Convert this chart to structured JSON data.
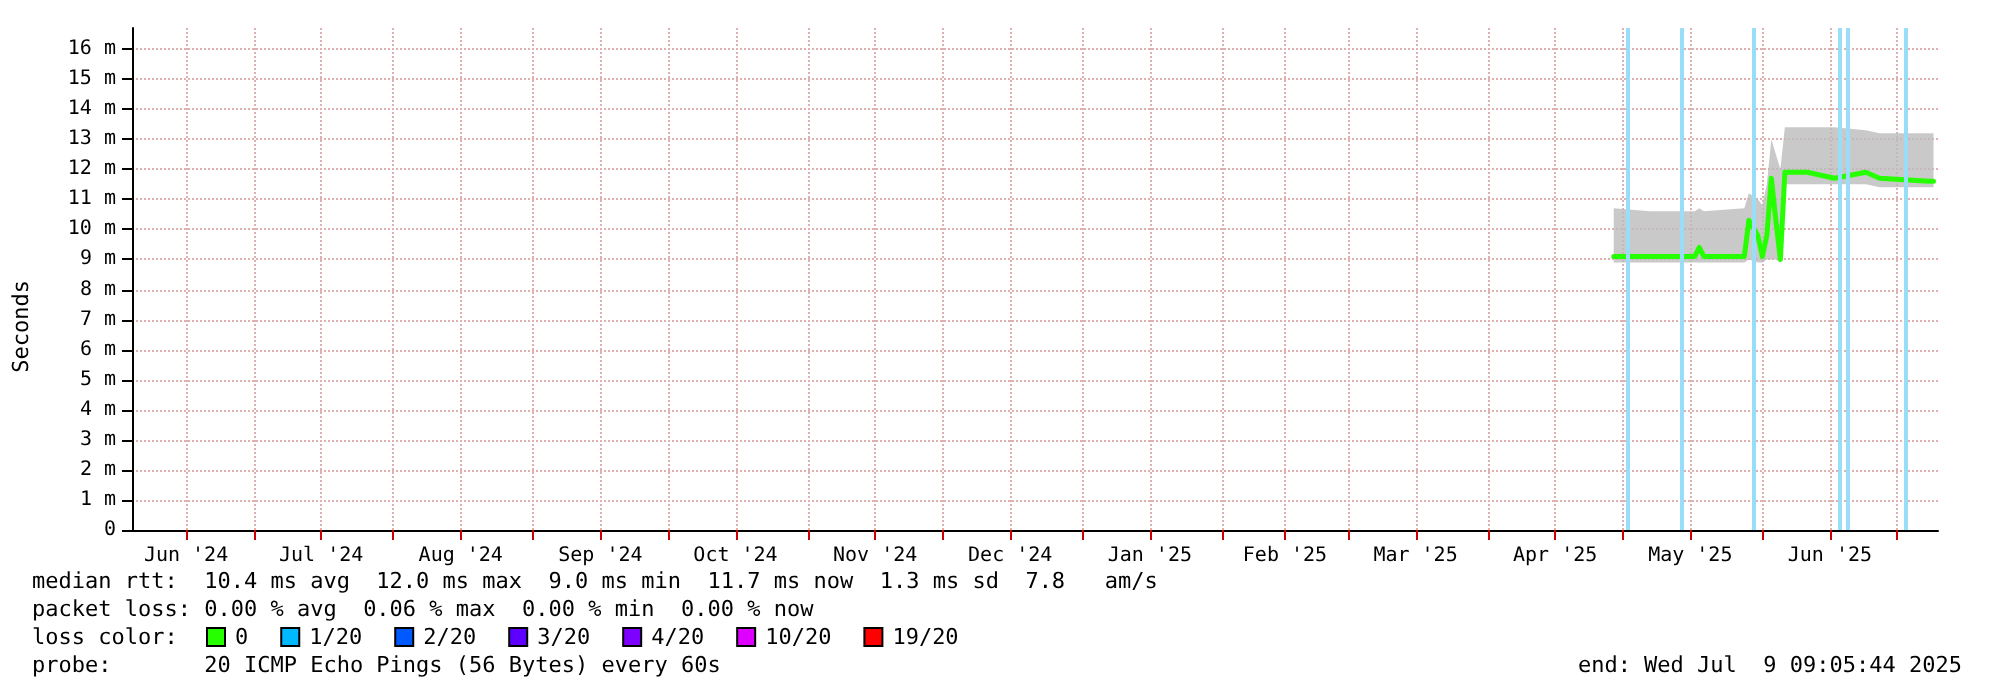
{
  "chart_data": {
    "type": "line",
    "ylabel": "Seconds",
    "legend_title": "loss color:",
    "legend": "bottom left",
    "grid": true,
    "marker": "none",
    "line_style": "solid",
    "annotations": [
      "median rtt:  10.4 ms avg  12.0 ms max  9.0 ms min  11.7 ms now  1.3 ms sd  7.8   am/s",
      "packet loss: 0.00 % avg  0.06 % max  0.00 % min  0.00 % now",
      "probe:       20 ICMP Echo Pings (56 Bytes) every 60s",
      "end: Wed Jul  9 09:05:44 2025"
    ],
    "xlim": [
      "2024-06-04",
      "2025-07-10"
    ],
    "xticks": [
      {
        "value": "2024-06-16",
        "label": "Jun '24"
      },
      {
        "value": "2024-07-01",
        "label": null
      },
      {
        "value": "2024-07-16",
        "label": "Jul '24"
      },
      {
        "value": "2024-08-01",
        "label": null
      },
      {
        "value": "2024-08-16",
        "label": "Aug '24"
      },
      {
        "value": "2024-09-01",
        "label": null
      },
      {
        "value": "2024-09-16",
        "label": "Sep '24"
      },
      {
        "value": "2024-10-01",
        "label": null
      },
      {
        "value": "2024-10-16",
        "label": "Oct '24"
      },
      {
        "value": "2024-11-01",
        "label": null
      },
      {
        "value": "2024-11-16",
        "label": "Nov '24"
      },
      {
        "value": "2024-12-01",
        "label": null
      },
      {
        "value": "2024-12-16",
        "label": "Dec '24"
      },
      {
        "value": "2025-01-01",
        "label": null
      },
      {
        "value": "2025-01-16",
        "label": "Jan '25"
      },
      {
        "value": "2025-02-01",
        "label": null
      },
      {
        "value": "2025-02-15",
        "label": "Feb '25"
      },
      {
        "value": "2025-03-01",
        "label": null
      },
      {
        "value": "2025-03-16",
        "label": "Mar '25"
      },
      {
        "value": "2025-04-01",
        "label": null
      },
      {
        "value": "2025-04-16",
        "label": "Apr '25"
      },
      {
        "value": "2025-05-01",
        "label": null
      },
      {
        "value": "2025-05-16",
        "label": "May '25"
      },
      {
        "value": "2025-06-01",
        "label": null
      },
      {
        "value": "2025-06-16",
        "label": "Jun '25"
      },
      {
        "value": "2025-07-01",
        "label": null
      }
    ],
    "ylim": [
      0,
      16.7
    ],
    "yticks": [
      0,
      {
        "value": 1,
        "label": "1 m"
      },
      {
        "value": 2,
        "label": "2 m"
      },
      {
        "value": 3,
        "label": "3 m"
      },
      {
        "value": 4,
        "label": "4 m"
      },
      {
        "value": 5,
        "label": "5 m"
      },
      {
        "value": 6,
        "label": "6 m"
      },
      {
        "value": 7,
        "label": "7 m"
      },
      {
        "value": 8,
        "label": "8 m"
      },
      {
        "value": 9,
        "label": "9 m"
      },
      {
        "value": 10,
        "label": "10 m"
      },
      {
        "value": 11,
        "label": "11 m"
      },
      {
        "value": 12,
        "label": "12 m"
      },
      {
        "value": 13,
        "label": "13 m"
      },
      {
        "value": 14,
        "label": "14 m"
      },
      {
        "value": 15,
        "label": "15 m"
      },
      {
        "value": 16,
        "label": "16 m"
      }
    ],
    "ref_lines": [
      {
        "axis": "x",
        "value": "2025-05-02",
        "color": "#99ddf8"
      },
      {
        "axis": "x",
        "value": "2025-05-14",
        "color": "#99ddf8"
      },
      {
        "axis": "x",
        "value": "2025-05-30",
        "color": "#99ddf8"
      },
      {
        "axis": "x",
        "value": "2025-06-18",
        "color": "#99ddf8"
      },
      {
        "axis": "x",
        "value": "2025-06-20",
        "color": "#99ddf8"
      },
      {
        "axis": "x",
        "value": "2025-07-03",
        "color": "#99ddf8"
      }
    ],
    "series": [
      {
        "name": "0",
        "color": "#26ff00",
        "x": [
          "2025-04-29",
          "2025-05-07",
          "2025-05-17",
          "2025-05-18",
          "2025-05-19",
          "2025-05-28",
          "2025-05-29",
          "2025-05-31",
          "2025-06-01",
          "2025-06-02",
          "2025-06-03",
          "2025-06-04",
          "2025-06-05",
          "2025-06-06",
          "2025-06-11",
          "2025-06-17",
          "2025-06-24",
          "2025-06-27",
          "2025-07-08",
          "2025-07-09"
        ],
        "values": [
          9.1,
          9.1,
          9.1,
          9.4,
          9.1,
          9.1,
          10.3,
          9.8,
          9.1,
          9.8,
          11.7,
          10.3,
          9.0,
          11.9,
          11.9,
          11.7,
          11.9,
          11.7,
          11.6,
          11.6
        ],
        "lower": [
          8.9,
          8.9,
          8.9,
          8.9,
          8.9,
          8.9,
          9.0,
          8.9,
          8.9,
          9.0,
          9.0,
          9.0,
          8.9,
          11.5,
          11.5,
          11.5,
          11.5,
          11.4,
          11.4,
          11.4
        ],
        "upper": [
          10.7,
          10.6,
          10.6,
          10.7,
          10.6,
          10.7,
          11.2,
          11.0,
          10.8,
          11.5,
          13.0,
          12.5,
          12.0,
          13.4,
          13.4,
          13.4,
          13.3,
          13.2,
          13.2,
          13.2
        ]
      },
      {
        "name": "1/20",
        "color": "#00b8ff",
        "values": [
          null
        ]
      },
      {
        "name": "2/20",
        "color": "#0059ff",
        "values": [
          null
        ]
      },
      {
        "name": "3/20",
        "color": "#5e00ff",
        "values": [
          null
        ]
      },
      {
        "name": "4/20",
        "color": "#7e00ff",
        "values": [
          null
        ]
      },
      {
        "name": "10/20",
        "color": "#dd00ff",
        "values": [
          null
        ]
      },
      {
        "name": "19/20",
        "color": "#ff0000",
        "values": [
          null
        ]
      }
    ]
  }
}
